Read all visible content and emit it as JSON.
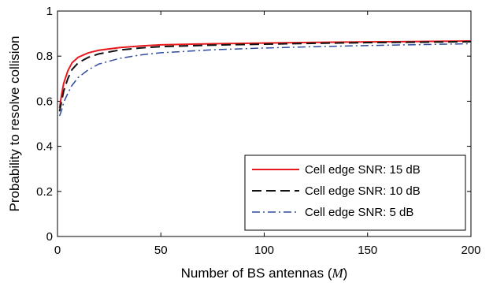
{
  "chart_data": {
    "type": "line",
    "xlabel": "Number of BS antennas (M)",
    "ylabel": "Probability to resolve collision",
    "xlim": [
      0,
      200
    ],
    "ylim": [
      0,
      1
    ],
    "xticks": [
      0,
      50,
      100,
      150,
      200
    ],
    "yticks": [
      0,
      0.2,
      0.4,
      0.6,
      0.8,
      1
    ],
    "xtick_labels": [
      "0",
      "50",
      "100",
      "150",
      "200"
    ],
    "ytick_labels": [
      "0",
      "0.2",
      "0.4",
      "0.6",
      "0.8",
      "1"
    ],
    "grid": false,
    "legend_position": "bottom-right",
    "x": [
      1,
      2,
      3,
      5,
      7,
      10,
      15,
      20,
      30,
      40,
      50,
      75,
      100,
      125,
      150,
      175,
      200
    ],
    "series": [
      {
        "name": "Cell edge SNR: 15 dB",
        "color": "#e8191c",
        "style": "solid",
        "values": [
          0.57,
          0.63,
          0.68,
          0.735,
          0.77,
          0.795,
          0.815,
          0.826,
          0.838,
          0.845,
          0.85,
          0.855,
          0.858,
          0.861,
          0.863,
          0.865,
          0.867
        ]
      },
      {
        "name": "Cell edge SNR: 10 dB",
        "color": "#111111",
        "style": "dashed",
        "values": [
          0.555,
          0.6,
          0.645,
          0.7,
          0.74,
          0.77,
          0.795,
          0.81,
          0.827,
          0.836,
          0.842,
          0.849,
          0.853,
          0.857,
          0.86,
          0.862,
          0.864
        ]
      },
      {
        "name": "Cell edge SNR: 5 dB",
        "color": "#2e4b9e",
        "style": "dashdot",
        "values": [
          0.535,
          0.56,
          0.595,
          0.635,
          0.67,
          0.705,
          0.74,
          0.765,
          0.79,
          0.805,
          0.815,
          0.828,
          0.836,
          0.842,
          0.847,
          0.851,
          0.855
        ]
      }
    ]
  }
}
